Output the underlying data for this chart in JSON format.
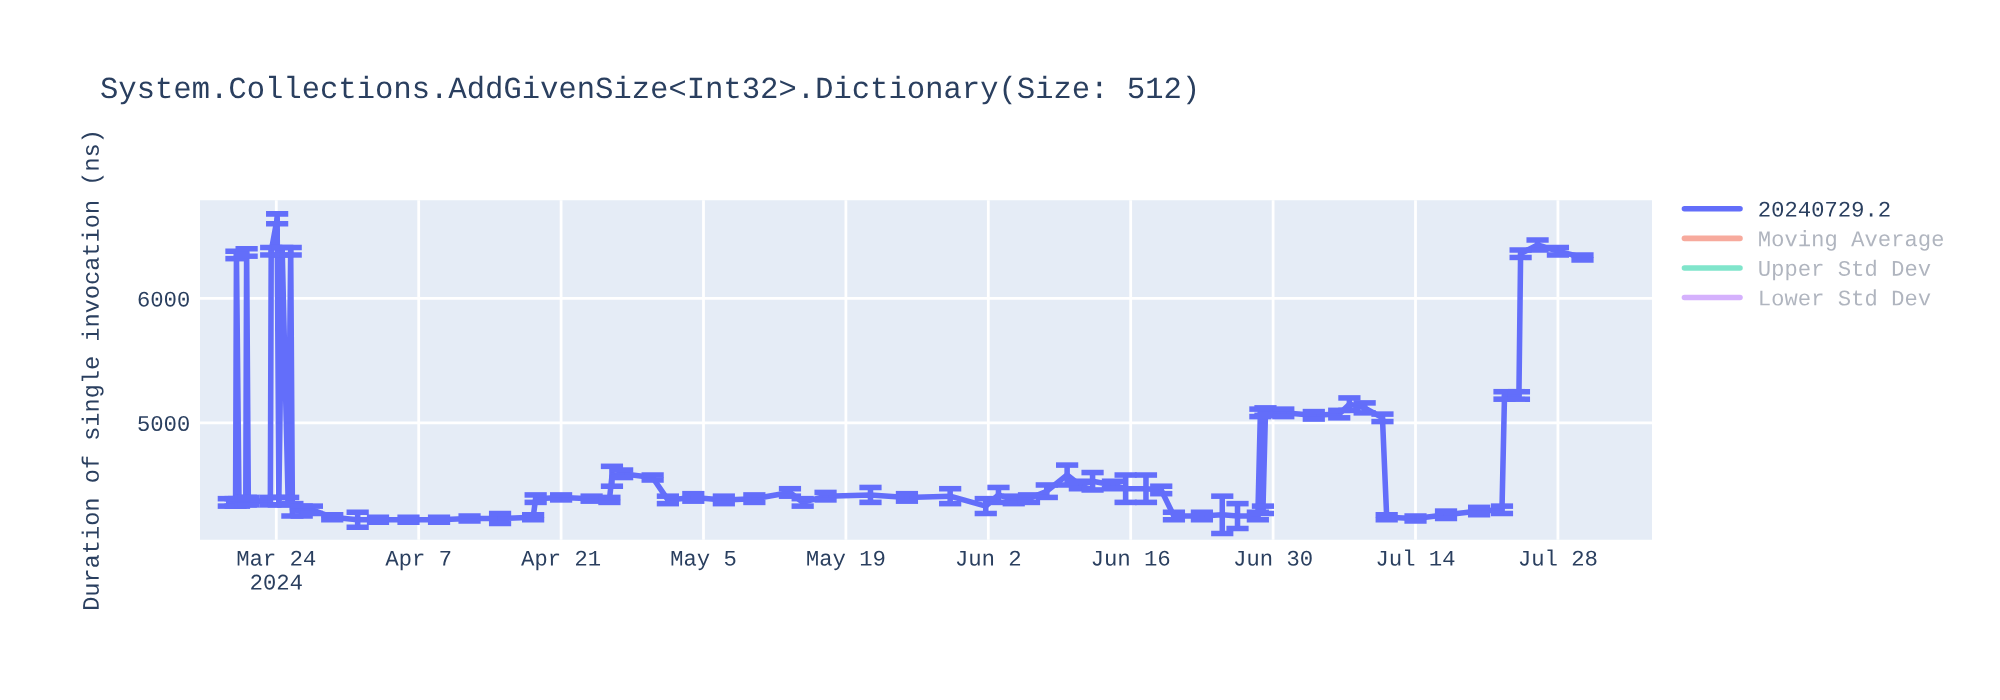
{
  "chart_data": {
    "type": "line",
    "title": "System.Collections.AddGivenSize<Int32>.Dictionary(Size: 512)",
    "ylabel": "Duration of single invocation (ns)",
    "x": [
      "2024-03-19T08:00",
      "2024-03-20T00:00",
      "2024-03-20T02:00",
      "2024-03-20T08:00",
      "2024-03-21T00:00",
      "2024-03-21T02:00",
      "2024-03-21T06:00",
      "2024-03-23T10:00",
      "2024-03-23T12:00",
      "2024-03-24T02:00",
      "2024-03-24T06:00",
      "2024-03-24T14:00",
      "2024-03-25T04:00",
      "2024-03-25T10:00",
      "2024-03-25T14:00",
      "2024-03-26T12:00",
      "2024-03-27T12:00",
      "2024-03-29T12:00",
      "2024-04-01T00:00",
      "2024-04-03T00:00",
      "2024-04-06T00:00",
      "2024-04-09T00:00",
      "2024-04-12T00:00",
      "2024-04-15T00:00",
      "2024-04-18T06:00",
      "2024-04-18T12:00",
      "2024-04-21T00:00",
      "2024-04-24T00:00",
      "2024-04-25T18:00",
      "2024-04-26T00:00",
      "2024-04-27T00:00",
      "2024-04-30T00:00",
      "2024-05-01T12:00",
      "2024-05-04T00:00",
      "2024-05-07T00:00",
      "2024-05-10T00:00",
      "2024-05-13T12:00",
      "2024-05-14T18:00",
      "2024-05-17T00:00",
      "2024-05-21T10:00",
      "2024-05-25T00:00",
      "2024-05-29T06:00",
      "2024-06-01T18:00",
      "2024-06-03T00:00",
      "2024-06-04T12:00",
      "2024-06-06T00:00",
      "2024-06-07T18:00",
      "2024-06-09T18:00",
      "2024-06-11T00:00",
      "2024-06-12T06:00",
      "2024-06-14T06:00",
      "2024-06-15T12:00",
      "2024-06-17T12:00",
      "2024-06-19T00:00",
      "2024-06-20T06:00",
      "2024-06-23T00:00",
      "2024-06-25T00:00",
      "2024-06-26T12:00",
      "2024-06-28T12:00",
      "2024-06-28T18:00",
      "2024-06-29T00:00",
      "2024-06-29T06:00",
      "2024-07-01T00:00",
      "2024-07-04T00:00",
      "2024-07-06T12:00",
      "2024-07-07T12:00",
      "2024-07-09T00:00",
      "2024-07-10T18:00",
      "2024-07-11T04:00",
      "2024-07-14T00:00",
      "2024-07-17T00:00",
      "2024-07-20T06:00",
      "2024-07-22T12:00",
      "2024-07-22T18:00",
      "2024-07-24T04:00",
      "2024-07-24T08:00",
      "2024-07-26T00:00",
      "2024-07-28T00:00",
      "2024-07-30T10:00"
    ],
    "series": [
      {
        "name": "20240729.2",
        "color": "#636efa",
        "values": [
          4360,
          4360,
          6350,
          4360,
          4370,
          6370,
          4370,
          4370,
          6380,
          6640,
          4370,
          6380,
          4370,
          6380,
          4300,
          4290,
          4300,
          4240,
          4220,
          4220,
          4220,
          4220,
          4230,
          4230,
          4240,
          4390,
          4400,
          4390,
          4380,
          4570,
          4590,
          4560,
          4380,
          4400,
          4380,
          4390,
          4440,
          4360,
          4410,
          4420,
          4400,
          4410,
          4330,
          4420,
          4380,
          4390,
          4450,
          4580,
          4500,
          4530,
          4500,
          4470,
          4470,
          4460,
          4250,
          4250,
          4260,
          4250,
          4250,
          5080,
          4300,
          5090,
          5080,
          5060,
          5070,
          5150,
          5120,
          5040,
          4240,
          4230,
          4260,
          4290,
          4300,
          5220,
          5220,
          6360,
          6430,
          6380,
          6330
        ],
        "errors": [
          30,
          30,
          30,
          30,
          30,
          30,
          30,
          30,
          30,
          40,
          30,
          30,
          30,
          30,
          50,
          40,
          30,
          20,
          60,
          20,
          20,
          20,
          20,
          40,
          20,
          30,
          20,
          20,
          20,
          80,
          30,
          20,
          30,
          30,
          30,
          30,
          30,
          30,
          30,
          60,
          30,
          60,
          60,
          60,
          30,
          30,
          50,
          80,
          30,
          70,
          30,
          110,
          110,
          30,
          30,
          30,
          150,
          100,
          30,
          30,
          30,
          30,
          30,
          30,
          30,
          50,
          40,
          30,
          20,
          20,
          30,
          30,
          30,
          30,
          30,
          30,
          40,
          30,
          20
        ]
      },
      {
        "name": "Moving Average",
        "color": "#f7aa9d",
        "values": [
          null,
          null,
          null,
          null,
          null,
          null,
          null,
          null,
          null,
          null,
          null,
          null,
          null,
          null,
          null,
          null,
          null,
          null,
          null,
          null,
          null,
          null,
          null,
          null,
          null,
          null,
          null,
          null,
          null,
          null,
          null,
          null,
          null,
          null,
          null,
          null,
          null,
          null,
          null,
          null,
          null,
          null,
          null,
          null,
          null,
          null,
          null,
          null,
          null,
          null,
          null,
          null,
          null,
          null,
          null,
          null,
          null,
          null,
          null,
          null,
          null,
          null,
          null,
          null,
          null,
          null,
          null,
          null,
          null,
          null,
          null,
          null,
          null,
          null,
          null,
          null,
          null,
          null,
          null
        ]
      },
      {
        "name": "Upper Std Dev",
        "color": "#80e5cb",
        "values": [
          null,
          null,
          null,
          null,
          null,
          null,
          null,
          null,
          null,
          null,
          null,
          null,
          null,
          null,
          null,
          null,
          null,
          null,
          null,
          null,
          null,
          null,
          null,
          null,
          null,
          null,
          null,
          null,
          null,
          null,
          null,
          null,
          null,
          null,
          null,
          null,
          null,
          null,
          null,
          null,
          null,
          null,
          null,
          null,
          null,
          null,
          null,
          null,
          null,
          null,
          null,
          null,
          null,
          null,
          null,
          null,
          null,
          null,
          null,
          null,
          null,
          null,
          null,
          null,
          null,
          null,
          null,
          null,
          null,
          null,
          null,
          null,
          null,
          null,
          null,
          null,
          null,
          null,
          null
        ]
      },
      {
        "name": "Lower Std Dev",
        "color": "#d5b1fd",
        "values": [
          null,
          null,
          null,
          null,
          null,
          null,
          null,
          null,
          null,
          null,
          null,
          null,
          null,
          null,
          null,
          null,
          null,
          null,
          null,
          null,
          null,
          null,
          null,
          null,
          null,
          null,
          null,
          null,
          null,
          null,
          null,
          null,
          null,
          null,
          null,
          null,
          null,
          null,
          null,
          null,
          null,
          null,
          null,
          null,
          null,
          null,
          null,
          null,
          null,
          null,
          null,
          null,
          null,
          null,
          null,
          null,
          null,
          null,
          null,
          null,
          null,
          null,
          null,
          null,
          null,
          null,
          null,
          null,
          null,
          null,
          null,
          null,
          null,
          null,
          null,
          null,
          null,
          null,
          null
        ]
      }
    ],
    "xlim": [
      "2024-03-16T12:00",
      "2024-08-06T06:00"
    ],
    "xticks": [
      {
        "value": "2024-03-24",
        "label": "Mar 24\n2024"
      },
      {
        "value": "2024-04-07",
        "label": "Apr 7"
      },
      {
        "value": "2024-04-21",
        "label": "Apr 21"
      },
      {
        "value": "2024-05-05",
        "label": "May 5"
      },
      {
        "value": "2024-05-19",
        "label": "May 19"
      },
      {
        "value": "2024-06-02",
        "label": "Jun 2"
      },
      {
        "value": "2024-06-16",
        "label": "Jun 16"
      },
      {
        "value": "2024-06-30",
        "label": "Jun 30"
      },
      {
        "value": "2024-07-14",
        "label": "Jul 14"
      },
      {
        "value": "2024-07-28",
        "label": "Jul 28"
      }
    ],
    "ylim": [
      4060,
      6790
    ],
    "yticks": [
      5000,
      6000
    ],
    "grid": true,
    "legend": "right",
    "marker": "none",
    "line_style": "solid"
  }
}
